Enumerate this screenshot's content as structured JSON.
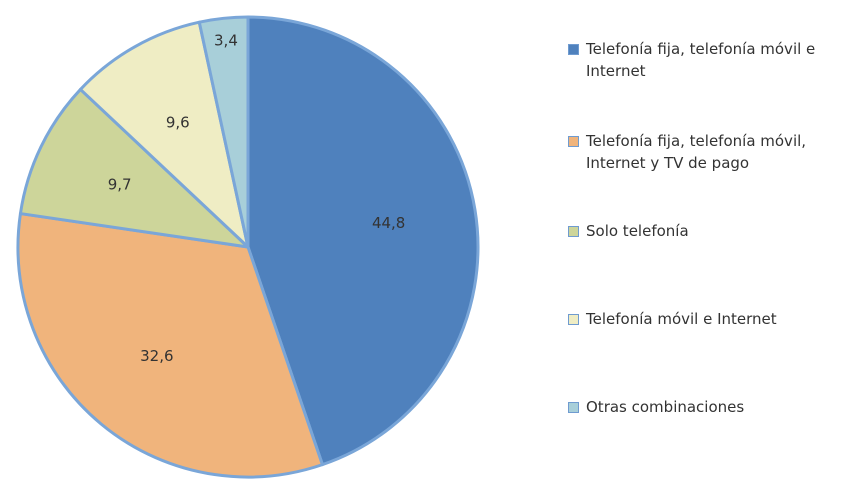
{
  "chart_data": {
    "type": "pie",
    "categories": [
      "Telefonía fija, telefonía móvil e Internet",
      "Telefonía fija, telefonía móvil, Internet y TV de pago",
      "Solo telefonía",
      "Telefonía móvil e Internet",
      "Otras combinaciones"
    ],
    "values": [
      44.8,
      32.6,
      9.7,
      9.6,
      3.4
    ],
    "value_labels": [
      "44,8",
      "32,6",
      "9,7",
      "9,6",
      "3,4"
    ],
    "colors": [
      "#4f81bd",
      "#f0b47c",
      "#cdd59a",
      "#efedc4",
      "#a8cfd9"
    ],
    "legend": "right"
  }
}
